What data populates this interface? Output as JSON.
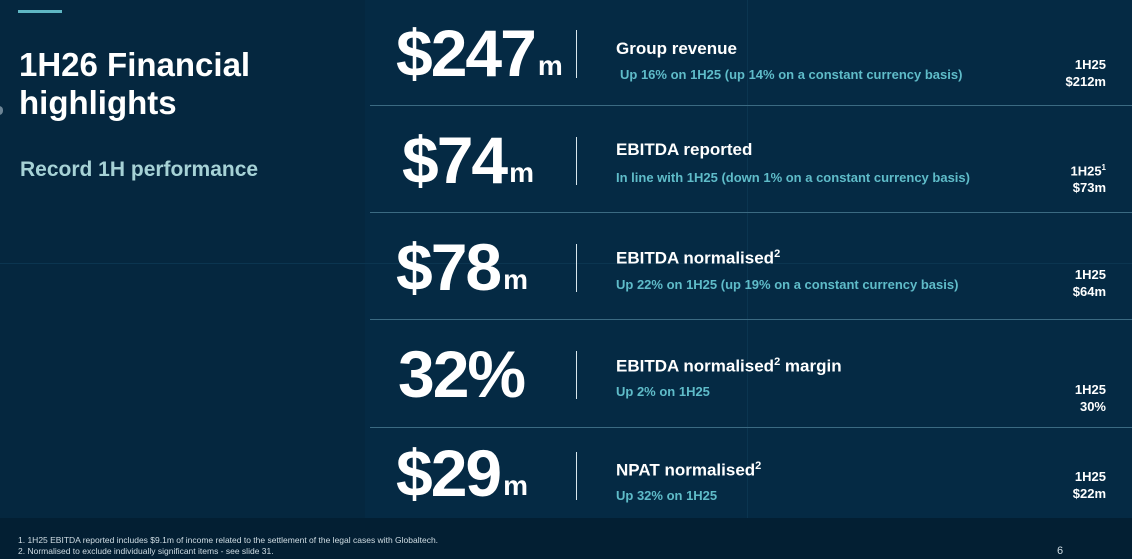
{
  "slide": {
    "title": "1H26 Financial highlights",
    "subtitle": "Record 1H performance",
    "page_number": "6",
    "colors": {
      "background": "#052a44",
      "accent": "#5fb7c4",
      "note_text": "#5fbcc9",
      "subtitle_text": "#a6d2d6"
    }
  },
  "metrics": [
    {
      "value": "$247",
      "unit": "m",
      "label": "Group revenue",
      "label_sup": "",
      "label_suffix": "",
      "note": "Up 16% on 1H25 (up 14% on a constant currency basis)",
      "compare_period": "1H25",
      "compare_sup": "",
      "compare_value": "$212m"
    },
    {
      "value": "$74",
      "unit": "m",
      "label": "EBITDA reported",
      "label_sup": "",
      "label_suffix": "",
      "note": "In line with 1H25 (down 1% on a constant currency basis)",
      "compare_period": "1H25",
      "compare_sup": "1",
      "compare_value": "$73m"
    },
    {
      "value": "$78",
      "unit": "m",
      "label": "EBITDA normalised",
      "label_sup": "2",
      "label_suffix": "",
      "note": "Up 22% on 1H25 (up 19% on a constant currency basis)",
      "compare_period": "1H25",
      "compare_sup": "",
      "compare_value": "$64m"
    },
    {
      "value": "32%",
      "unit": "",
      "label": "EBITDA normalised",
      "label_sup": "2",
      "label_suffix": " margin",
      "note": "Up 2% on 1H25",
      "compare_period": "1H25",
      "compare_sup": "",
      "compare_value": "30%"
    },
    {
      "value": "$29",
      "unit": "m",
      "label": "NPAT normalised",
      "label_sup": "2",
      "label_suffix": "",
      "note": "Up 32% on 1H25",
      "compare_period": "1H25",
      "compare_sup": "",
      "compare_value": "$22m"
    }
  ],
  "footnotes": [
    "1. 1H25 EBITDA reported includes $9.1m of income related to the settlement of the legal cases with Globaltech.",
    "2. Normalised to exclude individually significant items -  see slide 31."
  ]
}
